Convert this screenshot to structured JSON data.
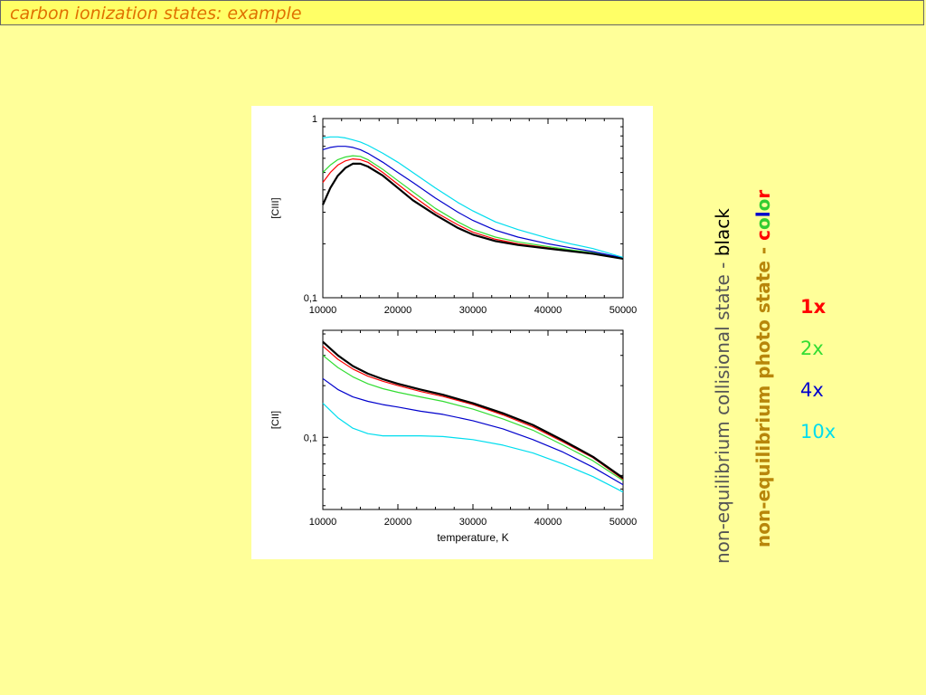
{
  "slide": {
    "title": "carbon ionization states: example",
    "label1_main": "non-equilibrium collisional state - ",
    "label1_end": "black",
    "label2_main": "non-equilibrium photo state - ",
    "label2_color_letters": [
      "c",
      "o",
      "l",
      "o",
      "r"
    ],
    "label2_letter_colors": [
      "#FF0000",
      "#33CC33",
      "#0000CC",
      "#33CC33",
      "#FF0000"
    ],
    "label1_color": "#555555",
    "label1_end_color": "#000000",
    "label2_color": "#B8860B",
    "legend": [
      {
        "label": "1x",
        "color": "#FF0000",
        "bold": true
      },
      {
        "label": "2x",
        "color": "#33DD33",
        "bold": false
      },
      {
        "label": "4x",
        "color": "#0000CC",
        "bold": false
      },
      {
        "label": "10x",
        "color": "#00DDEE",
        "bold": false
      }
    ]
  },
  "chart_data": [
    {
      "type": "line",
      "ylabel": "[CIII]",
      "xlabel": "",
      "xlim": [
        10000,
        50000
      ],
      "ylim": [
        0.1,
        1
      ],
      "yscale": "log",
      "x_ticks": [
        "10000",
        "20000",
        "30000",
        "40000",
        "50000"
      ],
      "y_ticks": [
        {
          "value": 0.1,
          "label": "0,1"
        },
        {
          "value": 1,
          "label": "1"
        }
      ],
      "series": [
        {
          "color": "#000000",
          "width": 2.2,
          "x": [
            10000,
            11000,
            12000,
            13000,
            14000,
            15000,
            16000,
            18000,
            20000,
            22000,
            25000,
            28000,
            30000,
            33000,
            36000,
            40000,
            43000,
            46000,
            50000
          ],
          "y": [
            0.33,
            0.41,
            0.48,
            0.53,
            0.56,
            0.56,
            0.54,
            0.48,
            0.41,
            0.35,
            0.29,
            0.245,
            0.225,
            0.207,
            0.197,
            0.188,
            0.182,
            0.176,
            0.165
          ]
        },
        {
          "color": "#FF0000",
          "width": 1.2,
          "x": [
            10000,
            11000,
            12000,
            13000,
            14000,
            15000,
            16000,
            18000,
            20000,
            22000,
            25000,
            28000,
            30000,
            33000,
            36000,
            40000,
            43000,
            46000,
            50000
          ],
          "y": [
            0.44,
            0.5,
            0.55,
            0.58,
            0.595,
            0.59,
            0.57,
            0.5,
            0.43,
            0.37,
            0.3,
            0.255,
            0.232,
            0.212,
            0.2,
            0.19,
            0.183,
            0.177,
            0.166
          ]
        },
        {
          "color": "#33DD33",
          "width": 1.2,
          "x": [
            10000,
            11000,
            12000,
            13000,
            14000,
            15000,
            16000,
            18000,
            20000,
            22000,
            25000,
            28000,
            30000,
            33000,
            36000,
            40000,
            43000,
            46000,
            50000
          ],
          "y": [
            0.5,
            0.55,
            0.59,
            0.61,
            0.62,
            0.615,
            0.59,
            0.52,
            0.45,
            0.39,
            0.315,
            0.265,
            0.24,
            0.218,
            0.205,
            0.193,
            0.185,
            0.178,
            0.166
          ]
        },
        {
          "color": "#0000CC",
          "width": 1.2,
          "x": [
            10000,
            11000,
            12000,
            13000,
            14000,
            15000,
            16000,
            18000,
            20000,
            22000,
            25000,
            28000,
            30000,
            33000,
            36000,
            40000,
            43000,
            46000,
            50000
          ],
          "y": [
            0.67,
            0.69,
            0.7,
            0.7,
            0.69,
            0.67,
            0.64,
            0.57,
            0.5,
            0.44,
            0.36,
            0.3,
            0.27,
            0.238,
            0.218,
            0.2,
            0.19,
            0.181,
            0.167
          ]
        },
        {
          "color": "#00DDEE",
          "width": 1.2,
          "x": [
            10000,
            11000,
            12000,
            13000,
            14000,
            15000,
            16000,
            18000,
            20000,
            22000,
            25000,
            28000,
            30000,
            33000,
            36000,
            40000,
            43000,
            46000,
            50000
          ],
          "y": [
            0.78,
            0.79,
            0.79,
            0.78,
            0.76,
            0.74,
            0.71,
            0.64,
            0.57,
            0.5,
            0.41,
            0.34,
            0.305,
            0.265,
            0.24,
            0.215,
            0.2,
            0.188,
            0.168
          ]
        }
      ]
    },
    {
      "type": "line",
      "ylabel": "[CII]",
      "xlabel": "temperature, K",
      "xlim": [
        10000,
        50000
      ],
      "ylim": [
        0.038,
        0.42
      ],
      "yscale": "log",
      "x_ticks": [
        "10000",
        "20000",
        "30000",
        "40000",
        "50000"
      ],
      "y_ticks": [
        {
          "value": 0.1,
          "label": "0,1"
        }
      ],
      "series": [
        {
          "color": "#000000",
          "width": 2.2,
          "x": [
            10000,
            12000,
            14000,
            16000,
            18000,
            20000,
            23000,
            26000,
            30000,
            34000,
            38000,
            42000,
            46000,
            50000
          ],
          "y": [
            0.36,
            0.3,
            0.26,
            0.235,
            0.218,
            0.205,
            0.19,
            0.177,
            0.158,
            0.138,
            0.118,
            0.096,
            0.077,
            0.058
          ]
        },
        {
          "color": "#FF0000",
          "width": 1.2,
          "x": [
            10000,
            12000,
            14000,
            16000,
            18000,
            20000,
            23000,
            26000,
            30000,
            34000,
            38000,
            42000,
            46000,
            50000
          ],
          "y": [
            0.34,
            0.285,
            0.25,
            0.227,
            0.212,
            0.2,
            0.185,
            0.173,
            0.155,
            0.135,
            0.115,
            0.094,
            0.076,
            0.057
          ]
        },
        {
          "color": "#33DD33",
          "width": 1.2,
          "x": [
            10000,
            12000,
            14000,
            16000,
            18000,
            20000,
            23000,
            26000,
            30000,
            34000,
            38000,
            42000,
            46000,
            50000
          ],
          "y": [
            0.3,
            0.255,
            0.225,
            0.205,
            0.192,
            0.183,
            0.172,
            0.162,
            0.146,
            0.128,
            0.11,
            0.09,
            0.073,
            0.056
          ]
        },
        {
          "color": "#0000CC",
          "width": 1.2,
          "x": [
            10000,
            12000,
            14000,
            16000,
            18000,
            20000,
            23000,
            26000,
            30000,
            34000,
            38000,
            42000,
            46000,
            50000
          ],
          "y": [
            0.22,
            0.19,
            0.172,
            0.162,
            0.155,
            0.15,
            0.142,
            0.136,
            0.125,
            0.112,
            0.097,
            0.082,
            0.067,
            0.053
          ]
        },
        {
          "color": "#00DDEE",
          "width": 1.2,
          "x": [
            10000,
            12000,
            14000,
            16000,
            18000,
            20000,
            23000,
            26000,
            30000,
            34000,
            38000,
            42000,
            46000,
            50000
          ],
          "y": [
            0.158,
            0.13,
            0.113,
            0.105,
            0.102,
            0.102,
            0.102,
            0.101,
            0.097,
            0.09,
            0.081,
            0.07,
            0.059,
            0.048
          ]
        }
      ]
    }
  ]
}
